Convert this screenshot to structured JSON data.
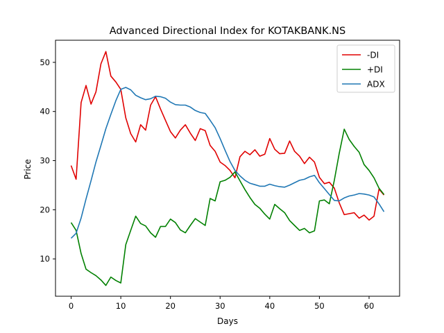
{
  "chart_data": {
    "type": "line",
    "title": "Advanced Directional Index for KOTAKBANK.NS",
    "xlabel": "Days",
    "ylabel": "Price",
    "xlim": [
      -3.15,
      66.15
    ],
    "ylim": [
      2.4,
      54.5
    ],
    "xticks": [
      0,
      10,
      20,
      30,
      40,
      50,
      60
    ],
    "yticks": [
      10,
      20,
      30,
      40,
      50
    ],
    "grid": false,
    "legend": "top-right",
    "series": [
      {
        "name": "-DI",
        "color": "#e00000",
        "x": [
          0,
          1,
          2,
          3,
          4,
          5,
          6,
          7,
          8,
          9,
          10,
          11,
          12,
          13,
          14,
          15,
          16,
          17,
          18,
          19,
          20,
          21,
          22,
          23,
          24,
          25,
          26,
          27,
          28,
          29,
          30,
          31,
          32,
          33,
          34,
          35,
          36,
          37,
          38,
          39,
          40,
          41,
          42,
          43,
          44,
          45,
          46,
          47,
          48,
          49,
          50,
          51,
          52,
          53,
          54,
          55,
          56,
          57,
          58,
          59,
          60,
          61,
          62,
          63
        ],
        "values": [
          29.0,
          26.2,
          41.8,
          45.3,
          41.5,
          44.0,
          49.7,
          52.2,
          47.2,
          46.0,
          44.5,
          38.7,
          35.5,
          33.8,
          37.3,
          36.2,
          41.3,
          43.0,
          40.5,
          38.2,
          35.9,
          34.6,
          36.2,
          37.3,
          35.6,
          34.1,
          36.5,
          36.1,
          33.1,
          31.9,
          29.7,
          29.0,
          28.0,
          26.5,
          30.8,
          31.9,
          31.2,
          32.2,
          30.9,
          31.3,
          34.5,
          32.3,
          31.4,
          31.5,
          34.0,
          31.9,
          30.9,
          29.4,
          30.7,
          29.7,
          26.6,
          25.3,
          25.6,
          24.4,
          21.4,
          19.0,
          19.2,
          19.4,
          18.3,
          18.9,
          17.9,
          18.7,
          24.2,
          23.0
        ]
      },
      {
        "name": "+DI",
        "color": "#008000",
        "x": [
          0,
          1,
          2,
          3,
          4,
          5,
          6,
          7,
          8,
          9,
          10,
          11,
          12,
          13,
          14,
          15,
          16,
          17,
          18,
          19,
          20,
          21,
          22,
          23,
          24,
          25,
          26,
          27,
          28,
          29,
          30,
          31,
          32,
          33,
          34,
          35,
          36,
          37,
          38,
          39,
          40,
          41,
          42,
          43,
          44,
          45,
          46,
          47,
          48,
          49,
          50,
          51,
          52,
          53,
          54,
          55,
          56,
          57,
          58,
          59,
          60,
          61,
          62,
          63
        ],
        "values": [
          17.4,
          15.8,
          11.1,
          7.9,
          7.2,
          6.6,
          5.7,
          4.6,
          6.3,
          5.6,
          5.1,
          12.9,
          15.8,
          18.7,
          17.2,
          16.7,
          15.3,
          14.4,
          16.6,
          16.6,
          18.1,
          17.4,
          15.9,
          15.3,
          16.8,
          18.2,
          17.5,
          16.8,
          22.3,
          21.8,
          25.7,
          26.0,
          26.6,
          27.7,
          25.9,
          24.1,
          22.5,
          21.1,
          20.3,
          19.1,
          18.1,
          21.1,
          20.2,
          19.4,
          17.8,
          16.8,
          15.8,
          16.2,
          15.3,
          15.7,
          21.8,
          22.0,
          21.2,
          26.0,
          31.5,
          36.4,
          34.3,
          32.9,
          31.7,
          29.2,
          28.0,
          26.5,
          24.4,
          23.1
        ]
      },
      {
        "name": "ADX",
        "color": "#1f77b4",
        "x": [
          0,
          1,
          2,
          3,
          4,
          5,
          6,
          7,
          8,
          9,
          10,
          11,
          12,
          13,
          14,
          15,
          16,
          17,
          18,
          19,
          20,
          21,
          22,
          23,
          24,
          25,
          26,
          27,
          28,
          29,
          30,
          31,
          32,
          33,
          34,
          35,
          36,
          37,
          38,
          39,
          40,
          41,
          42,
          43,
          44,
          45,
          46,
          47,
          48,
          49,
          50,
          51,
          52,
          53,
          54,
          55,
          56,
          57,
          58,
          59,
          60,
          61,
          62,
          63
        ],
        "values": [
          14.2,
          15.2,
          18.3,
          22.2,
          25.9,
          29.7,
          33.1,
          36.5,
          39.4,
          42.2,
          44.5,
          44.9,
          44.4,
          43.3,
          42.8,
          42.4,
          42.6,
          43.1,
          43.0,
          42.7,
          41.9,
          41.4,
          41.3,
          41.3,
          40.9,
          40.2,
          39.8,
          39.6,
          38.2,
          36.7,
          34.5,
          32.1,
          29.8,
          28.0,
          26.9,
          26.0,
          25.4,
          25.1,
          24.8,
          24.8,
          25.2,
          24.9,
          24.7,
          24.6,
          25.0,
          25.5,
          26.0,
          26.2,
          26.7,
          27.0,
          25.5,
          24.3,
          23.1,
          21.9,
          21.8,
          22.4,
          22.8,
          23.0,
          23.3,
          23.2,
          23.0,
          22.6,
          21.2,
          19.6
        ]
      }
    ]
  }
}
